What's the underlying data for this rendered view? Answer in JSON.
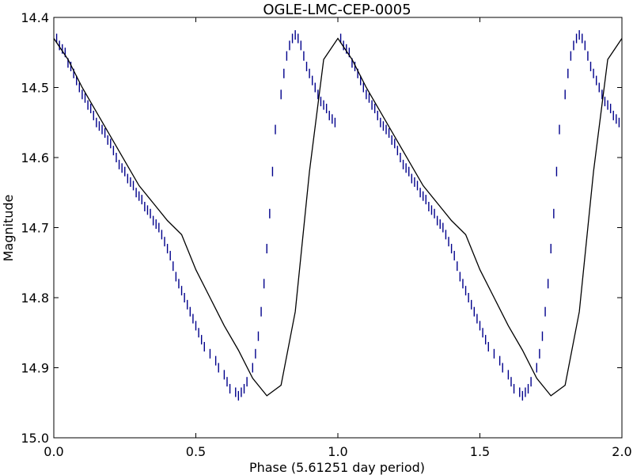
{
  "chart_data": {
    "type": "scatter",
    "title": "OGLE-LMC-CEP-0005",
    "xlabel": "Phase (5.61251 day period)",
    "ylabel": "Magnitude",
    "xlim": [
      0.0,
      2.0
    ],
    "ylim": [
      15.0,
      14.4
    ],
    "y_inverted": true,
    "grid": false,
    "legend": "none",
    "x_ticks": [
      "0.0",
      "0.5",
      "1.0",
      "1.5",
      "2.0"
    ],
    "y_ticks": [
      "14.4",
      "14.5",
      "14.6",
      "14.7",
      "14.8",
      "14.9",
      "15.0"
    ],
    "marker": "vertical-line",
    "colors": {
      "points": "#00008b",
      "model": "#000000",
      "axes": "#000000"
    },
    "series": [
      {
        "kind": "points",
        "note": "observations shown for phases 0-1 and repeated at phase+1",
        "x": [
          0.01,
          0.02,
          0.03,
          0.04,
          0.05,
          0.06,
          0.07,
          0.08,
          0.09,
          0.1,
          0.11,
          0.12,
          0.13,
          0.14,
          0.15,
          0.16,
          0.17,
          0.18,
          0.19,
          0.2,
          0.21,
          0.22,
          0.23,
          0.24,
          0.25,
          0.26,
          0.27,
          0.28,
          0.29,
          0.3,
          0.31,
          0.32,
          0.33,
          0.34,
          0.35,
          0.36,
          0.37,
          0.38,
          0.39,
          0.4,
          0.41,
          0.42,
          0.43,
          0.44,
          0.45,
          0.46,
          0.47,
          0.48,
          0.49,
          0.5,
          0.51,
          0.52,
          0.53,
          0.55,
          0.57,
          0.58,
          0.6,
          0.61,
          0.62,
          0.64,
          0.65,
          0.66,
          0.67,
          0.68,
          0.7,
          0.71,
          0.72,
          0.73,
          0.74,
          0.75,
          0.76,
          0.77,
          0.78,
          0.8,
          0.81,
          0.82,
          0.83,
          0.84,
          0.85,
          0.86,
          0.87,
          0.88,
          0.89,
          0.9,
          0.91,
          0.92,
          0.93,
          0.94,
          0.95,
          0.96,
          0.97,
          0.98,
          0.99
        ],
        "y": [
          14.43,
          14.44,
          14.445,
          14.45,
          14.465,
          14.47,
          14.48,
          14.49,
          14.5,
          14.51,
          14.515,
          14.525,
          14.53,
          14.54,
          14.55,
          14.555,
          14.56,
          14.565,
          14.575,
          14.58,
          14.59,
          14.6,
          14.61,
          14.615,
          14.62,
          14.63,
          14.635,
          14.64,
          14.65,
          14.655,
          14.66,
          14.67,
          14.675,
          14.68,
          14.69,
          14.695,
          14.7,
          14.71,
          14.72,
          14.73,
          14.74,
          14.755,
          14.77,
          14.78,
          14.79,
          14.8,
          14.81,
          14.82,
          14.83,
          14.84,
          14.85,
          14.86,
          14.87,
          14.88,
          14.89,
          14.9,
          14.91,
          14.92,
          14.93,
          14.935,
          14.94,
          14.935,
          14.93,
          14.92,
          14.9,
          14.88,
          14.855,
          14.82,
          14.78,
          14.73,
          14.68,
          14.62,
          14.56,
          14.51,
          14.48,
          14.455,
          14.44,
          14.43,
          14.425,
          14.43,
          14.44,
          14.455,
          14.47,
          14.48,
          14.49,
          14.5,
          14.51,
          14.52,
          14.525,
          14.53,
          14.54,
          14.545,
          14.55
        ]
      },
      {
        "kind": "line",
        "name": "",
        "x": [
          0.0,
          0.05,
          0.1,
          0.15,
          0.2,
          0.25,
          0.3,
          0.35,
          0.4,
          0.45,
          0.5,
          0.55,
          0.6,
          0.65,
          0.7,
          0.75,
          0.8,
          0.85,
          0.9,
          0.95,
          1.0,
          1.05,
          1.1,
          1.15,
          1.2,
          1.25,
          1.3,
          1.35,
          1.4,
          1.45,
          1.5,
          1.55,
          1.6,
          1.65,
          1.7,
          1.75,
          1.8,
          1.85,
          1.9,
          1.95,
          2.0
        ],
        "y": [
          14.43,
          14.46,
          14.5,
          14.535,
          14.57,
          14.605,
          14.64,
          14.665,
          14.69,
          14.71,
          14.76,
          14.8,
          14.84,
          14.875,
          14.915,
          14.94,
          14.925,
          14.82,
          14.62,
          14.46,
          14.43,
          14.46,
          14.5,
          14.535,
          14.57,
          14.605,
          14.64,
          14.665,
          14.69,
          14.71,
          14.76,
          14.8,
          14.84,
          14.875,
          14.915,
          14.94,
          14.925,
          14.82,
          14.62,
          14.46,
          14.43
        ]
      }
    ]
  }
}
